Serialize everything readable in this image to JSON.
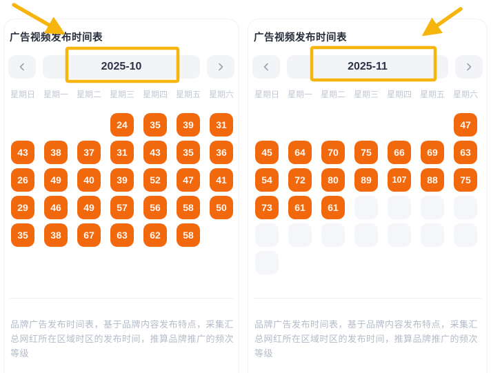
{
  "colors": {
    "tile_orange": "#f2690d",
    "tile_placeholder": "#f4f6f9",
    "annotation_gold": "#f5b50d"
  },
  "weekdays": [
    "星期日",
    "星期一",
    "星期二",
    "星期三",
    "星期四",
    "星期五",
    "星期六"
  ],
  "nav": {
    "prev_icon": "chevron-left-icon",
    "next_icon": "chevron-right-icon"
  },
  "panels": [
    {
      "title": "广告视频发布时间表",
      "month": "2025-10",
      "rows": [
        [
          "",
          "",
          "",
          24,
          35,
          39,
          31
        ],
        [
          43,
          38,
          37,
          31,
          43,
          35,
          36
        ],
        [
          26,
          49,
          40,
          39,
          52,
          47,
          41
        ],
        [
          29,
          46,
          49,
          57,
          56,
          58,
          50
        ],
        [
          35,
          38,
          67,
          63,
          62,
          58,
          ""
        ]
      ],
      "description": "品牌广告发布时间表，基于品牌内容发布特点，采集汇总网红所在区域时区的发布时间，推算品牌推广的频次等级"
    },
    {
      "title": "广告视频发布时间表",
      "month": "2025-11",
      "rows": [
        [
          "",
          "",
          "",
          "",
          "",
          "",
          47
        ],
        [
          45,
          64,
          70,
          75,
          66,
          69,
          63
        ],
        [
          54,
          72,
          80,
          89,
          107,
          88,
          75
        ],
        [
          73,
          61,
          61,
          "ph",
          "ph",
          "ph",
          "ph"
        ],
        [
          "ph",
          "ph",
          "ph",
          "ph",
          "ph",
          "ph",
          "ph"
        ],
        [
          "ph",
          "",
          "",
          "",
          "",
          "",
          ""
        ]
      ],
      "description": "品牌广告发布时间表，基于品牌内容发布特点，采集汇总网红所在区域时区的发布时间，推算品牌推广的频次等级"
    }
  ]
}
